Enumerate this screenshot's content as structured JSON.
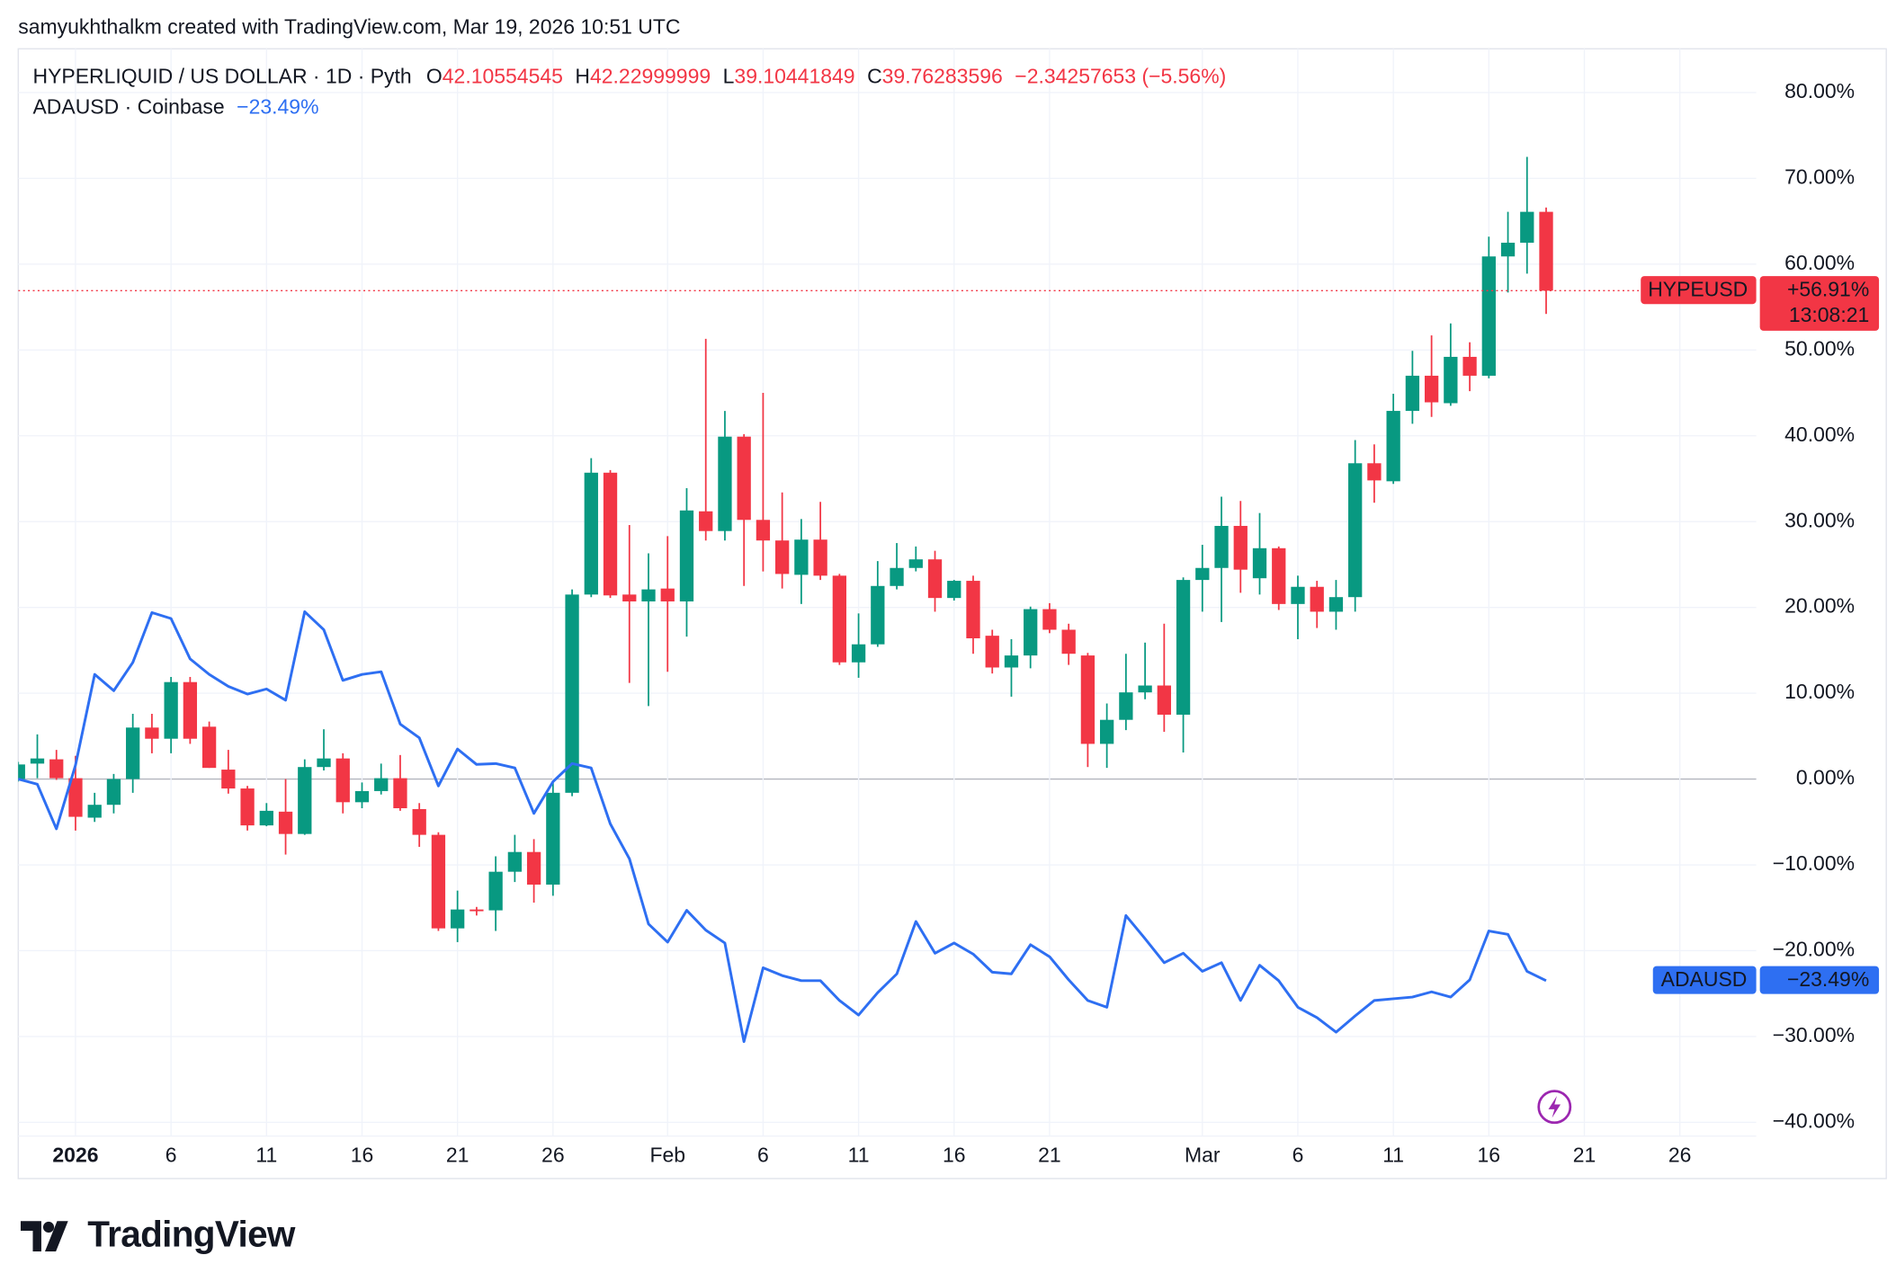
{
  "chart_data": {
    "type": "candlestick",
    "attribution": "samyukhthalkm created with TradingView.com, Mar 19, 2026 10:51 UTC",
    "title": "HYPERLIQUID / US DOLLAR · 1D · Pyth",
    "ohlc": [
      {
        "key": "O",
        "value": "42.10554545"
      },
      {
        "key": "H",
        "value": "42.22999999"
      },
      {
        "key": "L",
        "value": "39.10441849"
      },
      {
        "key": "C",
        "value": "39.76283596"
      }
    ],
    "change": "−2.34257653 (−5.56%)",
    "brand": "TradingView",
    "x": [
      "2025-12-29",
      "2025-12-30",
      "2025-12-31",
      "2026-01-01",
      "2026-01-02",
      "2026-01-03",
      "2026-01-04",
      "2026-01-05",
      "2026-01-06",
      "2026-01-07",
      "2026-01-08",
      "2026-01-09",
      "2026-01-10",
      "2026-01-11",
      "2026-01-12",
      "2026-01-13",
      "2026-01-14",
      "2026-01-15",
      "2026-01-16",
      "2026-01-17",
      "2026-01-18",
      "2026-01-19",
      "2026-01-20",
      "2026-01-21",
      "2026-01-22",
      "2026-01-23",
      "2026-01-24",
      "2026-01-25",
      "2026-01-26",
      "2026-01-27",
      "2026-01-28",
      "2026-01-29",
      "2026-01-30",
      "2026-01-31",
      "2026-02-01",
      "2026-02-02",
      "2026-02-03",
      "2026-02-04",
      "2026-02-05",
      "2026-02-06",
      "2026-02-07",
      "2026-02-08",
      "2026-02-09",
      "2026-02-10",
      "2026-02-11",
      "2026-02-12",
      "2026-02-13",
      "2026-02-14",
      "2026-02-15",
      "2026-02-16",
      "2026-02-17",
      "2026-02-18",
      "2026-02-19",
      "2026-02-20",
      "2026-02-21",
      "2026-02-22",
      "2026-02-23",
      "2026-02-24",
      "2026-02-25",
      "2026-02-26",
      "2026-02-27",
      "2026-02-28",
      "2026-03-01",
      "2026-03-02",
      "2026-03-03",
      "2026-03-04",
      "2026-03-05",
      "2026-03-06",
      "2026-03-07",
      "2026-03-08",
      "2026-03-09",
      "2026-03-10",
      "2026-03-11",
      "2026-03-12",
      "2026-03-13",
      "2026-03-14",
      "2026-03-15",
      "2026-03-16",
      "2026-03-17",
      "2026-03-18",
      "2026-03-19"
    ],
    "series": [
      {
        "name": "HYPEUSD",
        "up_color": "#089981",
        "down_color": "#f23645",
        "open": [
          0,
          1.8,
          2.3,
          0.1,
          -4.5,
          -3,
          0,
          6,
          4.7,
          11.3,
          6.1,
          1.1,
          -1.1,
          -5.4,
          -3.8,
          -6.4,
          1.4,
          2.4,
          -2.7,
          -1.4,
          0.1,
          -3.5,
          -6.5,
          -17.4,
          -15.2,
          -15.3,
          -10.8,
          -8.5,
          -12.3,
          -1.6,
          21.5,
          35.7,
          21.5,
          20.7,
          22.2,
          20.7,
          31.2,
          28.9,
          39.9,
          30.2,
          27.8,
          23.8,
          27.9,
          23.7,
          13.6,
          15.7,
          22.5,
          24.6,
          25.6,
          21.1,
          23.1,
          16.7,
          13,
          14.4,
          19.8,
          17.4,
          14.4,
          4.1,
          6.9,
          10.1,
          10.9,
          7.5,
          23.2,
          24.6,
          29.5,
          23.4,
          26.9,
          20.4,
          22.4,
          19.5,
          21.2,
          36.8,
          34.7,
          42.9,
          47,
          43.8,
          49.2,
          47,
          60.9,
          62.5,
          66.1
        ],
        "high": [
          2,
          5.2,
          3.4,
          2.7,
          -1.6,
          0.6,
          7.6,
          7.6,
          11.9,
          11.9,
          6.7,
          3.4,
          -0.8,
          -2.8,
          0,
          2.3,
          5.8,
          3,
          -0.4,
          1.8,
          2.8,
          -2.8,
          -6.2,
          -13,
          -14.9,
          -9,
          -6.5,
          -7,
          -0.4,
          22.1,
          37.4,
          36,
          29.6,
          26.3,
          28.3,
          33.9,
          51.3,
          42.9,
          40.2,
          45,
          33.4,
          30.3,
          32.3,
          23.9,
          19.3,
          25.4,
          27.5,
          27.1,
          26.6,
          23.2,
          23.7,
          17.4,
          16.3,
          20.1,
          20.5,
          18.1,
          14.7,
          8.8,
          14.6,
          15.9,
          18.1,
          23.5,
          27.3,
          32.9,
          32.4,
          31,
          27.1,
          23.7,
          23.1,
          23.2,
          39.5,
          39,
          44.9,
          49.9,
          51.7,
          53.1,
          50.9,
          63.2,
          66.1,
          72.5,
          66.6
        ],
        "low": [
          -0.3,
          0.1,
          -0.1,
          -6,
          -5,
          -4,
          -1.6,
          3,
          3,
          4.1,
          1.3,
          -1.7,
          -6,
          -5.5,
          -8.8,
          -6.5,
          1,
          -4,
          -3.4,
          -1.8,
          -3.7,
          -7.9,
          -17.7,
          -19,
          -15.9,
          -17.7,
          -12,
          -14.4,
          -13.6,
          -2,
          21.2,
          21.1,
          11.2,
          8.5,
          12.5,
          16.6,
          27.8,
          27.8,
          22.5,
          24.2,
          22.2,
          20.4,
          23.2,
          13.3,
          11.8,
          15.4,
          22.1,
          24.2,
          19.5,
          20.8,
          14.6,
          12.3,
          9.6,
          12.9,
          17,
          13.3,
          1.4,
          1.3,
          5.7,
          9.3,
          5.5,
          3.1,
          19.5,
          18.3,
          21.7,
          21.5,
          19.7,
          16.3,
          17.6,
          17.4,
          19.5,
          32.2,
          34.4,
          41.4,
          42.2,
          43.5,
          45.2,
          46.7,
          56.7,
          58.9,
          54.2
        ],
        "close": [
          1.7,
          2.4,
          0.1,
          -4.4,
          -3,
          0,
          6,
          4.7,
          11.3,
          4.7,
          1.3,
          -1.1,
          -5.4,
          -3.7,
          -6.4,
          1.4,
          2.4,
          -2.7,
          -1.4,
          0.1,
          -3.4,
          -6.5,
          -17.4,
          -15.2,
          -15.4,
          -10.8,
          -8.5,
          -12.3,
          -1.6,
          21.5,
          35.7,
          21.4,
          20.7,
          22.1,
          20.7,
          31.3,
          28.9,
          39.9,
          30.2,
          27.8,
          23.9,
          27.9,
          23.7,
          13.6,
          15.7,
          22.5,
          24.6,
          25.6,
          21.1,
          23.1,
          16.4,
          13,
          14.4,
          19.8,
          17.4,
          14.6,
          4.1,
          6.9,
          10.1,
          10.9,
          7.5,
          23.2,
          24.6,
          29.5,
          24.4,
          26.9,
          20.4,
          22.4,
          19.5,
          21.2,
          36.8,
          34.8,
          42.9,
          47,
          43.9,
          49.2,
          47,
          60.9,
          62.5,
          66.1,
          56.91
        ],
        "last_label": "+56.91%",
        "countdown": "13:08:21"
      },
      {
        "name": "ADAUSD",
        "type": "line",
        "source": "ADAUSD · Coinbase",
        "color": "#2e6ff2",
        "values": [
          0,
          -0.6,
          -5.8,
          1.6,
          12.2,
          10.3,
          13.6,
          19.4,
          18.7,
          14,
          12.2,
          10.8,
          9.9,
          10.5,
          9.2,
          19.5,
          17.4,
          11.5,
          12.2,
          12.5,
          6.4,
          4.8,
          -0.8,
          3.5,
          1.7,
          1.8,
          1.3,
          -4,
          -0.3,
          1.8,
          1.3,
          -5.2,
          -9.3,
          -16.9,
          -19,
          -15.3,
          -17.6,
          -19.1,
          -30.6,
          -22,
          -22.9,
          -23.5,
          -23.5,
          -25.8,
          -27.5,
          -24.9,
          -22.7,
          -16.6,
          -20.3,
          -19.1,
          -20.4,
          -22.5,
          -22.7,
          -19.3,
          -20.7,
          -23.4,
          -25.8,
          -26.6,
          -15.9,
          -18.6,
          -21.4,
          -20.3,
          -22.4,
          -21.4,
          -25.8,
          -21.7,
          -23.5,
          -26.6,
          -27.8,
          -29.5,
          -27.6,
          -25.8,
          -25.6,
          -25.4,
          -24.8,
          -25.4,
          -23.4,
          -17.7,
          -18.1,
          -22.4,
          -23.49
        ],
        "last_label": "−23.49%"
      }
    ],
    "xlim": [
      "2025-12-29",
      "2026-03-30"
    ],
    "xticks": [
      {
        "value": "2026-01-01",
        "label": "2026"
      },
      {
        "value": "2026-01-06",
        "label": "6"
      },
      {
        "value": "2026-01-11",
        "label": "11"
      },
      {
        "value": "2026-01-16",
        "label": "16"
      },
      {
        "value": "2026-01-21",
        "label": "21"
      },
      {
        "value": "2026-01-26",
        "label": "26"
      },
      {
        "value": "2026-02-01",
        "label": "Feb"
      },
      {
        "value": "2026-02-06",
        "label": "6"
      },
      {
        "value": "2026-02-11",
        "label": "11"
      },
      {
        "value": "2026-02-16",
        "label": "16"
      },
      {
        "value": "2026-02-21",
        "label": "21"
      },
      {
        "value": "2026-03-01",
        "label": "Mar"
      },
      {
        "value": "2026-03-06",
        "label": "6"
      },
      {
        "value": "2026-03-11",
        "label": "11"
      },
      {
        "value": "2026-03-16",
        "label": "16"
      },
      {
        "value": "2026-03-21",
        "label": "21"
      },
      {
        "value": "2026-03-26",
        "label": "26"
      }
    ],
    "ylim": [
      -41.6,
      85.1
    ],
    "yticks": [
      {
        "value": -40,
        "label": "−40.00%"
      },
      {
        "value": -30,
        "label": "−30.00%"
      },
      {
        "value": -20,
        "label": "−20.00%"
      },
      {
        "value": -10,
        "label": "−10.00%"
      },
      {
        "value": 0,
        "label": "0.00%"
      },
      {
        "value": 10,
        "label": "10.00%"
      },
      {
        "value": 20,
        "label": "20.00%"
      },
      {
        "value": 30,
        "label": "30.00%"
      },
      {
        "value": 40,
        "label": "40.00%"
      },
      {
        "value": 50,
        "label": "50.00%"
      },
      {
        "value": 60,
        "label": "60.00%"
      },
      {
        "value": 70,
        "label": "70.00%"
      },
      {
        "value": 80,
        "label": "80.00%"
      }
    ],
    "grid": true
  }
}
